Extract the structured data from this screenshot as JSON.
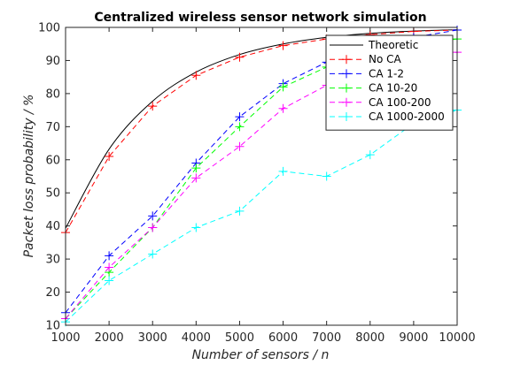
{
  "chart_data": {
    "type": "line",
    "title": "Centralized wireless sensor network simulation",
    "xlabel": "Number of sensors  / n",
    "ylabel": "Packet loss probability  / %",
    "xlim": [
      1000,
      10000
    ],
    "ylim": [
      10,
      100
    ],
    "x_ticks": [
      "1000",
      "2000",
      "3000",
      "4000",
      "5000",
      "6000",
      "7000",
      "8000",
      "9000",
      "10000"
    ],
    "y_ticks": [
      "10",
      "20",
      "30",
      "40",
      "50",
      "60",
      "70",
      "80",
      "90",
      "100"
    ],
    "x": [
      1000,
      2000,
      3000,
      4000,
      5000,
      6000,
      7000,
      8000,
      9000,
      10000
    ],
    "legend_position": "top-right",
    "grid": false,
    "series": [
      {
        "name": "Theoretic",
        "color": "#000000",
        "dash": "solid",
        "marker": "none",
        "smooth": true,
        "values": [
          39.3,
          63.2,
          77.7,
          86.5,
          91.8,
          95.0,
          97.0,
          98.2,
          98.9,
          99.3
        ]
      },
      {
        "name": "No CA",
        "color": "#ff0000",
        "dash": "dashed",
        "marker": "plus",
        "values": [
          38.0,
          61.0,
          76.2,
          85.5,
          91.0,
          94.5,
          96.5,
          97.8,
          98.8,
          99.2
        ]
      },
      {
        "name": "CA 1-2",
        "color": "#0000ff",
        "dash": "dashed",
        "marker": "plus",
        "values": [
          13.8,
          31.0,
          43.0,
          59.0,
          73.0,
          83.0,
          89.5,
          94.0,
          97.0,
          99.2
        ]
      },
      {
        "name": "CA 10-20",
        "color": "#00ff00",
        "dash": "dashed",
        "marker": "plus",
        "values": [
          12.0,
          26.0,
          39.5,
          57.5,
          70.0,
          82.0,
          88.0,
          92.0,
          95.0,
          96.5
        ]
      },
      {
        "name": "CA 100-200",
        "color": "#ff00ff",
        "dash": "dashed",
        "marker": "plus",
        "values": [
          12.0,
          27.5,
          39.5,
          54.5,
          64.0,
          75.5,
          82.5,
          88.0,
          90.5,
          92.5
        ]
      },
      {
        "name": "CA 1000-2000",
        "color": "#00ffff",
        "dash": "dashed",
        "marker": "plus",
        "values": [
          11.0,
          23.5,
          31.5,
          39.5,
          44.5,
          56.5,
          55.0,
          61.5,
          71.0,
          75.0
        ]
      }
    ]
  }
}
